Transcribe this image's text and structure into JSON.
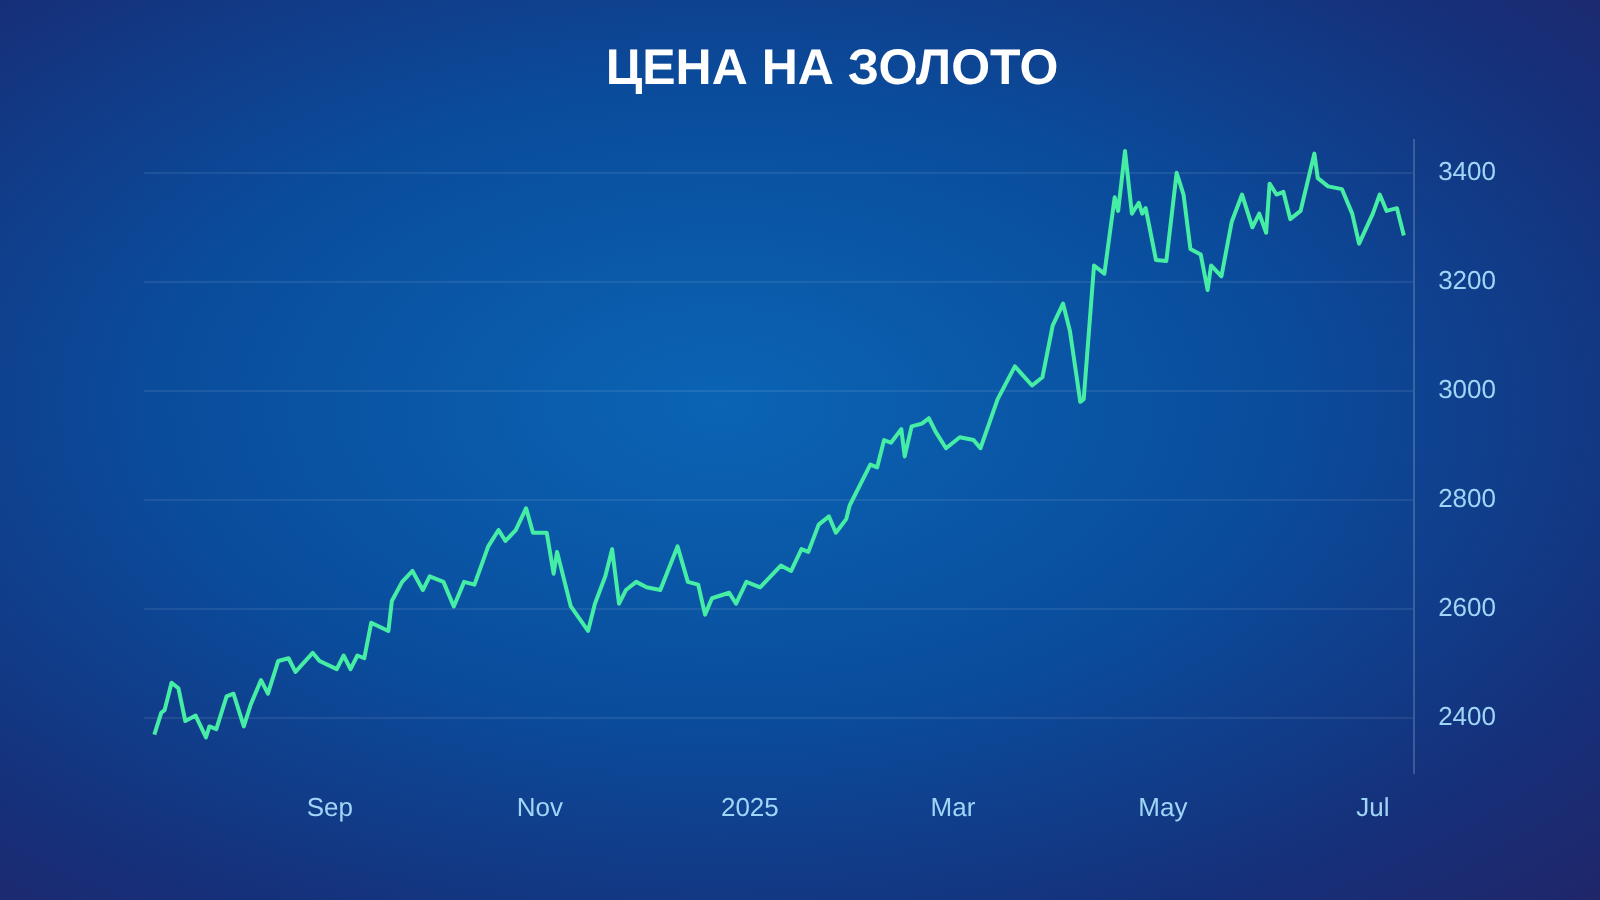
{
  "chart_data": {
    "type": "line",
    "title": "ЦЕНА НА ЗОЛОТО",
    "x": [
      "2024-07-12",
      "2024-07-14",
      "2024-07-15",
      "2024-07-17",
      "2024-07-19",
      "2024-07-21",
      "2024-07-24",
      "2024-07-27",
      "2024-07-28",
      "2024-07-30",
      "2024-08-02",
      "2024-08-04",
      "2024-08-07",
      "2024-08-09",
      "2024-08-12",
      "2024-08-14",
      "2024-08-17",
      "2024-08-20",
      "2024-08-22",
      "2024-08-27",
      "2024-08-29",
      "2024-09-03",
      "2024-09-05",
      "2024-09-07",
      "2024-09-09",
      "2024-09-11",
      "2024-09-13",
      "2024-09-18",
      "2024-09-19",
      "2024-09-22",
      "2024-09-25",
      "2024-09-28",
      "2024-09-30",
      "2024-10-04",
      "2024-10-07",
      "2024-10-10",
      "2024-10-13",
      "2024-10-17",
      "2024-10-20",
      "2024-10-22",
      "2024-10-25",
      "2024-10-28",
      "2024-10-30",
      "2024-11-03",
      "2024-11-05",
      "2024-11-06",
      "2024-11-10",
      "2024-11-15",
      "2024-11-17",
      "2024-11-20",
      "2024-11-22",
      "2024-11-24",
      "2024-11-26",
      "2024-11-29",
      "2024-12-02",
      "2024-12-06",
      "2024-12-11",
      "2024-12-14",
      "2024-12-17",
      "2024-12-19",
      "2024-12-21",
      "2024-12-26",
      "2024-12-28",
      "2024-12-31",
      "2025-01-04",
      "2025-01-10",
      "2025-01-13",
      "2025-01-16",
      "2025-01-18",
      "2025-01-21",
      "2025-01-24",
      "2025-01-26",
      "2025-01-29",
      "2025-01-30",
      "2025-02-05",
      "2025-02-07",
      "2025-02-09",
      "2025-02-11",
      "2025-02-14",
      "2025-02-15",
      "2025-02-17",
      "2025-02-20",
      "2025-02-22",
      "2025-02-24",
      "2025-02-27",
      "2025-03-03",
      "2025-03-07",
      "2025-03-09",
      "2025-03-14",
      "2025-03-19",
      "2025-03-24",
      "2025-03-27",
      "2025-03-30",
      "2025-04-02",
      "2025-04-04",
      "2025-04-07",
      "2025-04-08",
      "2025-04-11",
      "2025-04-14",
      "2025-04-17",
      "2025-04-18",
      "2025-04-20",
      "2025-04-22",
      "2025-04-24",
      "2025-04-25",
      "2025-04-26",
      "2025-04-29",
      "2025-05-02",
      "2025-05-05",
      "2025-05-07",
      "2025-05-09",
      "2025-05-12",
      "2025-05-14",
      "2025-05-15",
      "2025-05-18",
      "2025-05-21",
      "2025-05-24",
      "2025-05-27",
      "2025-05-29",
      "2025-05-31",
      "2025-06-01",
      "2025-06-03",
      "2025-06-05",
      "2025-06-07",
      "2025-06-10",
      "2025-06-14",
      "2025-06-15",
      "2025-06-18",
      "2025-06-22",
      "2025-06-25",
      "2025-06-27",
      "2025-07-01",
      "2025-07-03",
      "2025-07-05",
      "2025-07-08",
      "2025-07-10"
    ],
    "series": [
      {
        "color": "#45eea4",
        "values": [
          2370,
          2410,
          2415,
          2465,
          2455,
          2395,
          2405,
          2365,
          2385,
          2380,
          2440,
          2445,
          2385,
          2425,
          2470,
          2445,
          2505,
          2510,
          2485,
          2520,
          2505,
          2490,
          2515,
          2490,
          2515,
          2510,
          2575,
          2560,
          2615,
          2650,
          2670,
          2635,
          2660,
          2650,
          2605,
          2650,
          2645,
          2715,
          2745,
          2725,
          2745,
          2785,
          2740,
          2740,
          2665,
          2705,
          2605,
          2560,
          2610,
          2660,
          2710,
          2610,
          2635,
          2650,
          2640,
          2635,
          2715,
          2650,
          2645,
          2590,
          2620,
          2630,
          2610,
          2650,
          2640,
          2680,
          2670,
          2710,
          2705,
          2755,
          2770,
          2740,
          2765,
          2790,
          2865,
          2860,
          2910,
          2905,
          2930,
          2880,
          2935,
          2940,
          2950,
          2925,
          2895,
          2915,
          2910,
          2895,
          2985,
          3045,
          3010,
          3025,
          3120,
          3160,
          3110,
          2980,
          2985,
          3230,
          3215,
          3355,
          3330,
          3440,
          3325,
          3345,
          3325,
          3335,
          3240,
          3238,
          3400,
          3360,
          3260,
          3250,
          3185,
          3230,
          3210,
          3310,
          3360,
          3300,
          3325,
          3290,
          3380,
          3360,
          3365,
          3315,
          3330,
          3435,
          3390,
          3375,
          3370,
          3325,
          3270,
          3325,
          3360,
          3330,
          3335,
          3285
        ]
      }
    ],
    "xlim": [
      "2024-07-09",
      "2025-07-13"
    ],
    "xticks": [
      {
        "value": "2024-09-01",
        "label": "Sep"
      },
      {
        "value": "2024-11-01",
        "label": "Nov"
      },
      {
        "value": "2025-01-01",
        "label": "2025"
      },
      {
        "value": "2025-03-01",
        "label": "Mar"
      },
      {
        "value": "2025-05-01",
        "label": "May"
      },
      {
        "value": "2025-07-01",
        "label": "Jul"
      }
    ],
    "ylim": [
      2300,
      3460
    ],
    "yticks": [
      2400,
      2600,
      2800,
      3000,
      3200,
      3400
    ],
    "grid": "y",
    "marker": "none",
    "line_style": "solid",
    "legend": false
  }
}
